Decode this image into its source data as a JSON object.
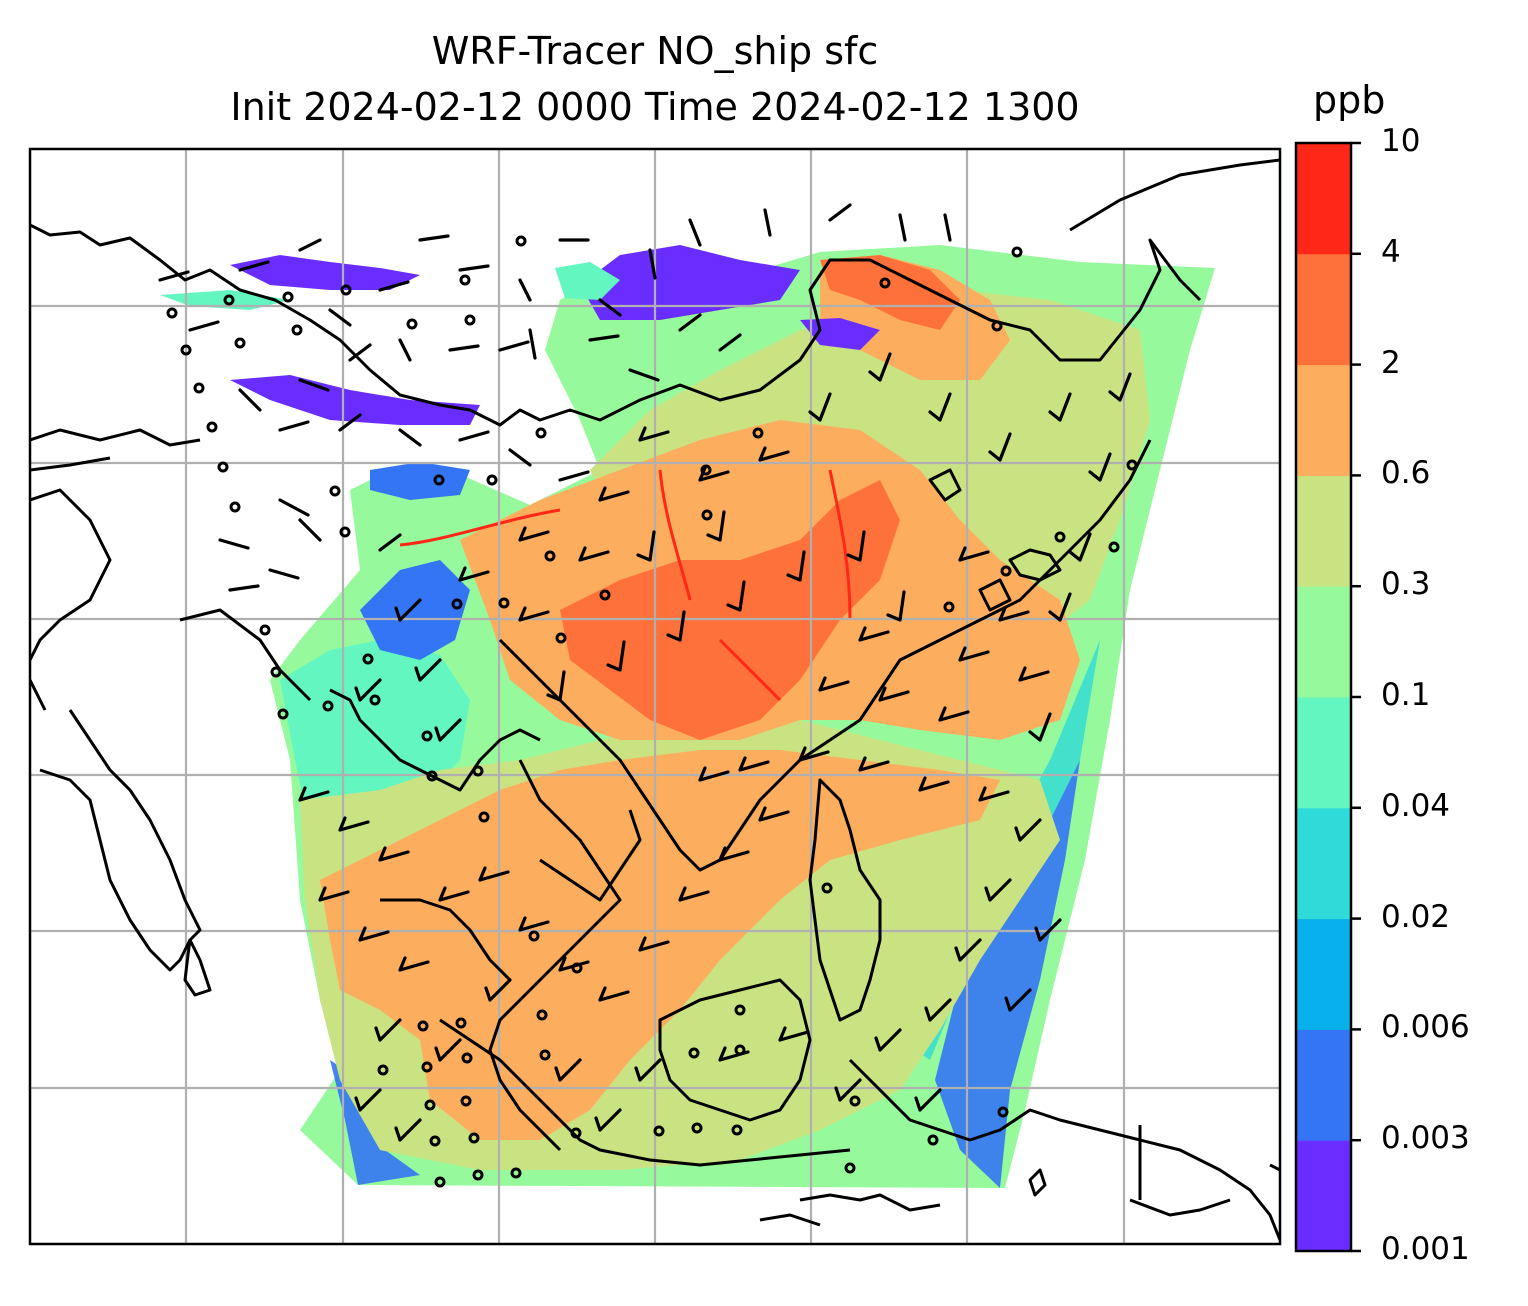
{
  "title": {
    "line1": "WRF-Tracer NO_ship sfc",
    "line2": "Init 2024-02-12 0000 Time 2024-02-12 1300"
  },
  "colorbar": {
    "unit": "ppb",
    "tick_labels": [
      "10",
      "4",
      "2",
      "0.6",
      "0.3",
      "0.1",
      "0.04",
      "0.02",
      "0.006",
      "0.003",
      "0.001"
    ],
    "levels": [
      0.001,
      0.003,
      0.006,
      0.02,
      0.04,
      0.1,
      0.3,
      0.6,
      2,
      4,
      10
    ],
    "colors": [
      "#6a2dff",
      "#3475f5",
      "#09b1ec",
      "#2edbd8",
      "#63f6c0",
      "#96fa9c",
      "#c9e382",
      "#fdad5e",
      "#fe713a",
      "#ff2818"
    ]
  },
  "chart_data": {
    "type": "heatmap",
    "variable": "NO_ship",
    "level": "sfc",
    "units": "ppb",
    "grid": true,
    "overlay": "wind barbs",
    "colorbar_levels": [
      0.001,
      0.003,
      0.006,
      0.02,
      0.04,
      0.1,
      0.3,
      0.6,
      2,
      4,
      10
    ]
  }
}
